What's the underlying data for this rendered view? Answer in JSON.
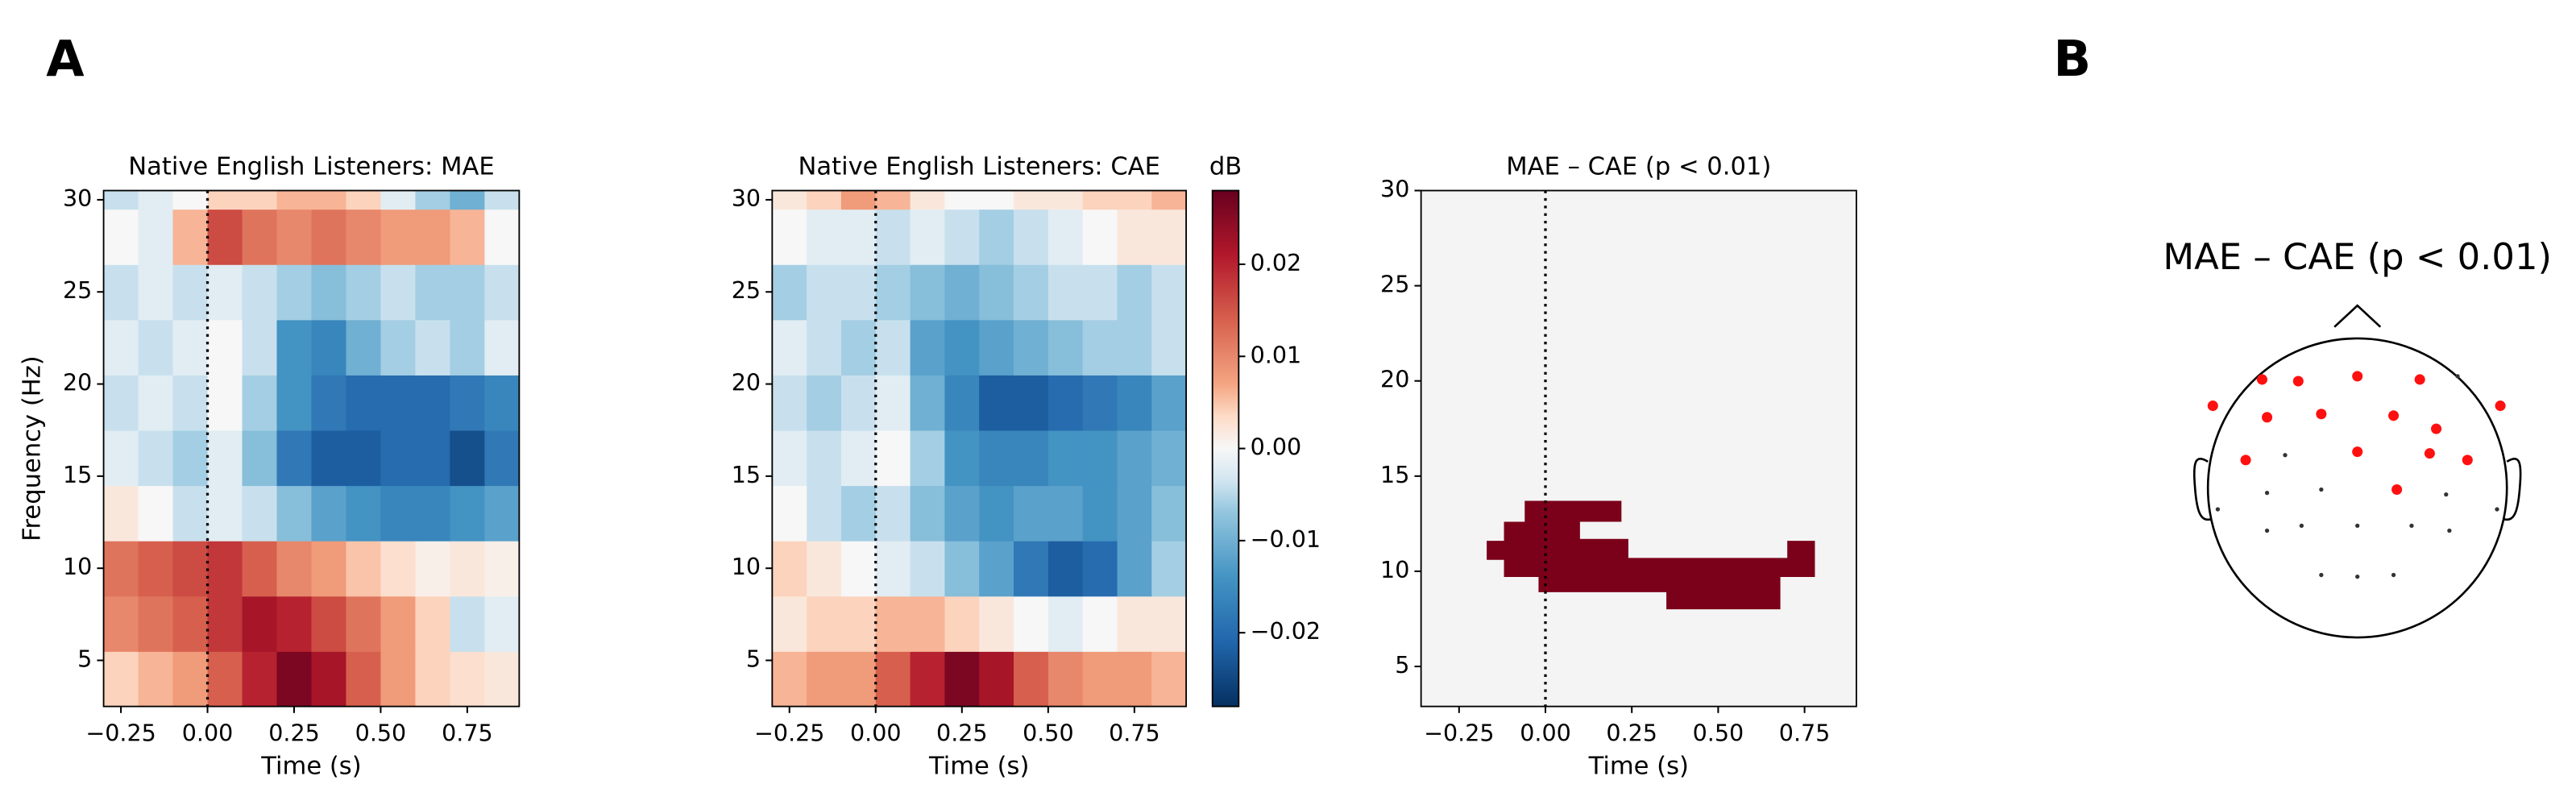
{
  "panel_labels": [
    "A",
    "B"
  ],
  "topomap": {
    "title": "MAE – CAE (p < 0.01)"
  },
  "chart_data": [
    {
      "type": "heatmap",
      "title": "Native English Listeners: MAE",
      "xlabel": "Time (s)",
      "ylabel": "Frequency (Hz)",
      "cmap": "RdBu_r",
      "clim": [
        -0.028,
        0.028
      ],
      "vline": 0,
      "x": [
        -0.25,
        -0.15,
        -0.05,
        0.05,
        0.15,
        0.25,
        0.35,
        0.45,
        0.55,
        0.65,
        0.75,
        0.85
      ],
      "y": [
        4,
        7,
        10,
        13,
        16,
        19,
        22,
        25,
        28,
        31
      ],
      "values": [
        [
          0.004,
          0.006,
          0.008,
          0.014,
          0.02,
          0.026,
          0.022,
          0.014,
          0.008,
          0.004,
          0.003,
          0.002
        ],
        [
          0.01,
          0.012,
          0.014,
          0.018,
          0.022,
          0.02,
          0.016,
          0.012,
          0.008,
          0.004,
          -0.004,
          -0.002
        ],
        [
          0.012,
          0.014,
          0.016,
          0.018,
          0.014,
          0.01,
          0.008,
          0.005,
          0.003,
          0.001,
          0.002,
          0.001
        ],
        [
          0.002,
          0.0,
          -0.004,
          -0.002,
          -0.004,
          -0.008,
          -0.012,
          -0.014,
          -0.016,
          -0.016,
          -0.014,
          -0.012
        ],
        [
          -0.002,
          -0.004,
          -0.006,
          -0.002,
          -0.008,
          -0.018,
          -0.022,
          -0.022,
          -0.02,
          -0.02,
          -0.024,
          -0.018
        ],
        [
          -0.004,
          -0.002,
          -0.004,
          0.0,
          -0.006,
          -0.014,
          -0.018,
          -0.02,
          -0.02,
          -0.02,
          -0.018,
          -0.016
        ],
        [
          -0.002,
          -0.004,
          -0.002,
          0.0,
          -0.004,
          -0.014,
          -0.016,
          -0.01,
          -0.006,
          -0.004,
          -0.006,
          -0.002
        ],
        [
          -0.004,
          -0.002,
          -0.004,
          -0.002,
          -0.004,
          -0.006,
          -0.008,
          -0.006,
          -0.004,
          -0.006,
          -0.006,
          -0.004
        ],
        [
          0.0,
          -0.002,
          0.006,
          0.016,
          0.012,
          0.01,
          0.012,
          0.01,
          0.008,
          0.008,
          0.006,
          0.0
        ],
        [
          -0.004,
          -0.002,
          0.0,
          0.004,
          0.004,
          0.006,
          0.006,
          0.004,
          -0.002,
          -0.006,
          -0.01,
          -0.004
        ]
      ],
      "xlim": [
        -0.3,
        0.9
      ],
      "ylim": [
        2.5,
        30.5
      ],
      "xticks": [
        {
          "value": -0.25,
          "label": "−0.25"
        },
        {
          "value": 0,
          "label": "0.00"
        },
        0.25,
        {
          "value": 0.5,
          "label": "0.50"
        },
        0.75
      ],
      "yticks": [
        5,
        10,
        15,
        20,
        25,
        30
      ]
    },
    {
      "type": "heatmap",
      "title": "Native English Listeners: CAE",
      "xlabel": "Time (s)",
      "cmap": "RdBu_r",
      "clim": [
        -0.028,
        0.028
      ],
      "vline": 0,
      "x": [
        -0.25,
        -0.15,
        -0.05,
        0.05,
        0.15,
        0.25,
        0.35,
        0.45,
        0.55,
        0.65,
        0.75,
        0.85
      ],
      "y": [
        4,
        7,
        10,
        13,
        16,
        19,
        22,
        25,
        28,
        31
      ],
      "values": [
        [
          0.006,
          0.008,
          0.008,
          0.014,
          0.02,
          0.026,
          0.022,
          0.014,
          0.01,
          0.008,
          0.008,
          0.006
        ],
        [
          0.002,
          0.004,
          0.004,
          0.006,
          0.006,
          0.004,
          0.002,
          0.0,
          -0.002,
          0.0,
          0.002,
          0.002
        ],
        [
          0.004,
          0.002,
          0.0,
          -0.002,
          -0.004,
          -0.008,
          -0.012,
          -0.018,
          -0.022,
          -0.02,
          -0.012,
          -0.006
        ],
        [
          0.0,
          -0.004,
          -0.006,
          -0.004,
          -0.008,
          -0.012,
          -0.014,
          -0.012,
          -0.012,
          -0.014,
          -0.012,
          -0.008
        ],
        [
          -0.002,
          -0.004,
          -0.002,
          0.0,
          -0.006,
          -0.014,
          -0.016,
          -0.016,
          -0.014,
          -0.014,
          -0.012,
          -0.01
        ],
        [
          -0.004,
          -0.006,
          -0.004,
          -0.002,
          -0.01,
          -0.016,
          -0.022,
          -0.022,
          -0.02,
          -0.018,
          -0.016,
          -0.012
        ],
        [
          -0.002,
          -0.004,
          -0.006,
          -0.004,
          -0.012,
          -0.014,
          -0.012,
          -0.01,
          -0.008,
          -0.006,
          -0.006,
          -0.004
        ],
        [
          -0.006,
          -0.004,
          -0.004,
          -0.006,
          -0.008,
          -0.01,
          -0.008,
          -0.006,
          -0.004,
          -0.004,
          -0.006,
          -0.004
        ],
        [
          0.0,
          -0.002,
          -0.002,
          -0.004,
          -0.002,
          -0.004,
          -0.006,
          -0.004,
          -0.002,
          0.0,
          0.002,
          0.002
        ],
        [
          0.002,
          0.004,
          0.008,
          0.006,
          0.002,
          0.0,
          0.0,
          0.002,
          0.002,
          0.004,
          0.004,
          0.006
        ]
      ],
      "xlim": [
        -0.3,
        0.9
      ],
      "ylim": [
        2.5,
        30.5
      ],
      "xticks": [
        {
          "value": -0.25,
          "label": "−0.25"
        },
        {
          "value": 0,
          "label": "0.00"
        },
        0.25,
        {
          "value": 0.5,
          "label": "0.50"
        },
        0.75
      ],
      "yticks": [
        5,
        10,
        15,
        20,
        25,
        30
      ],
      "colorbar_label": "dB",
      "cticks": [
        {
          "value": -0.02,
          "label": "−0.02"
        },
        {
          "value": -0.01,
          "label": "−0.01"
        },
        {
          "value": 0,
          "label": "0.00"
        },
        0.01,
        0.02
      ]
    },
    {
      "type": "mask",
      "title": "MAE – CAE (p < 0.01)",
      "xlabel": "Time (s)",
      "color": "#7b0019",
      "background": "#f4f4f4",
      "vline": 0,
      "x": [
        -0.06,
        0.22,
        0.22,
        0.1,
        0.1,
        0.24,
        0.24,
        0.7,
        0.7,
        0.78,
        0.78,
        0.68,
        0.68,
        0.35,
        0.35,
        -0.02,
        -0.02,
        -0.12,
        -0.12,
        -0.17,
        -0.17,
        -0.12,
        -0.12,
        -0.06
      ],
      "y": [
        13.7,
        13.7,
        12.6,
        12.6,
        11.7,
        11.7,
        10.7,
        10.7,
        11.6,
        11.6,
        9.7,
        9.7,
        8.0,
        8.0,
        8.9,
        8.9,
        9.7,
        9.7,
        10.6,
        10.6,
        11.6,
        11.6,
        12.6,
        12.6
      ],
      "xlim": [
        -0.36,
        0.9
      ],
      "ylim": [
        2.9,
        30
      ],
      "xticks": [
        {
          "value": -0.25,
          "label": "−0.25"
        },
        {
          "value": 0,
          "label": "0.00"
        },
        0.25,
        {
          "value": 0.5,
          "label": "0.50"
        },
        0.75
      ],
      "yticks": [
        5,
        10,
        15,
        20,
        25,
        30
      ]
    }
  ]
}
